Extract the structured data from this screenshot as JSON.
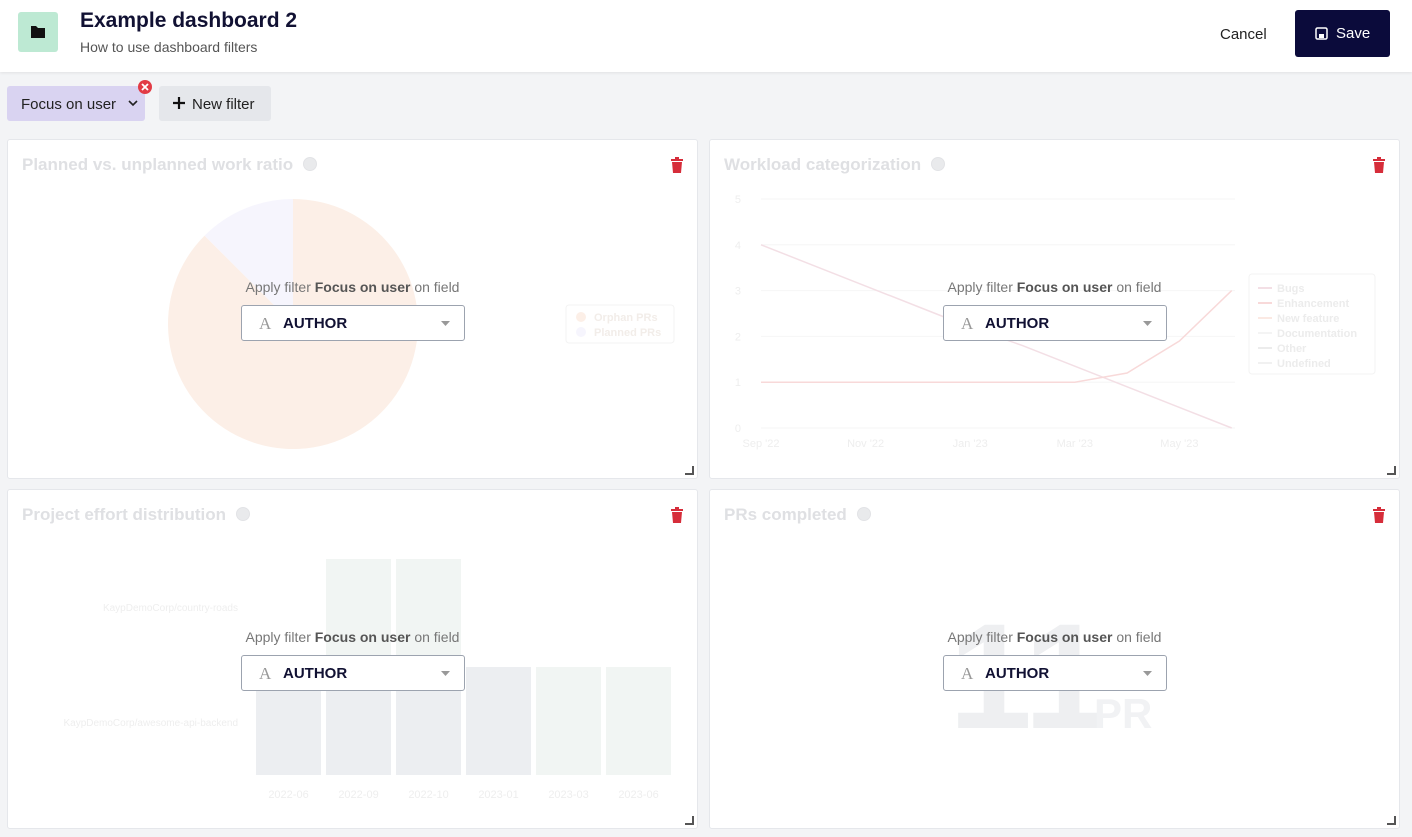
{
  "header": {
    "title": "Example dashboard 2",
    "subtitle": "How to use dashboard filters",
    "cancel": "Cancel",
    "save": "Save"
  },
  "filters": {
    "active": "Focus on user",
    "new": "New filter"
  },
  "overlay": {
    "prefix": "Apply filter",
    "filter": "Focus on user",
    "suffix": "on field",
    "field_icon": "A",
    "field": "AUTHOR"
  },
  "panels": [
    {
      "title": "Planned vs. unplanned work ratio",
      "chart": {
        "type": "pie",
        "categories": [
          "Orphan PRs",
          "Planned PRs"
        ],
        "values": [
          87.5,
          12.5
        ],
        "colors": [
          "#fcefe7",
          "#f6f5fd"
        ]
      }
    },
    {
      "title": "Workload categorization",
      "chart": {
        "type": "line",
        "x": [
          "Sep '22",
          null,
          "Nov '22",
          null,
          "Jan '23",
          null,
          "Mar '23",
          null,
          "May '23",
          null
        ],
        "ylim": [
          0,
          5
        ],
        "yticks": [
          0,
          1,
          2,
          3,
          4,
          5
        ],
        "grid": true,
        "series": [
          {
            "name": "Bugs",
            "color": "#f3dfe5",
            "values": [
              4,
              3.55,
              3.1,
              2.65,
              2.2,
              1.8,
              1.35,
              0.9,
              0.45,
              0
            ]
          },
          {
            "name": "Enhancement",
            "color": "#f8d9d9",
            "values": [
              1,
              1,
              1,
              1,
              1,
              1,
              1,
              1.2,
              1.9,
              3
            ]
          },
          {
            "name": "New feature",
            "color": "#fbe9e3",
            "values": [
              null,
              null,
              null,
              null,
              null,
              null,
              null,
              null,
              null,
              null
            ]
          },
          {
            "name": "Documentation",
            "color": "#f4f4f4",
            "values": [
              null,
              null,
              null,
              null,
              null,
              null,
              null,
              null,
              null,
              null
            ]
          },
          {
            "name": "Other",
            "color": "#ececec",
            "values": [
              null,
              null,
              null,
              null,
              null,
              null,
              null,
              null,
              null,
              null
            ]
          },
          {
            "name": "Undefined",
            "color": "#f1f1f1",
            "values": [
              null,
              null,
              null,
              null,
              null,
              null,
              null,
              null,
              null,
              null
            ]
          }
        ]
      }
    },
    {
      "title": "Project effort distribution",
      "chart": {
        "type": "bar",
        "categories": [
          "2022-06",
          "2022-09",
          "2022-10",
          "2023-01",
          "2023-03",
          "2023-06"
        ],
        "series": [
          {
            "name": "KaypDemoCorp/awesome-api-backend",
            "color": "#eceef1",
            "values": [
              1,
              1,
              1,
              1,
              0,
              0
            ]
          },
          {
            "name": "KaypDemoCorp/country-roads",
            "color": "#f1f5f3",
            "values": [
              0,
              1,
              1,
              0,
              1,
              1
            ]
          }
        ]
      }
    },
    {
      "title": "PRs completed",
      "chart": {
        "type": "number",
        "value": 11,
        "unit": "PR"
      }
    }
  ]
}
